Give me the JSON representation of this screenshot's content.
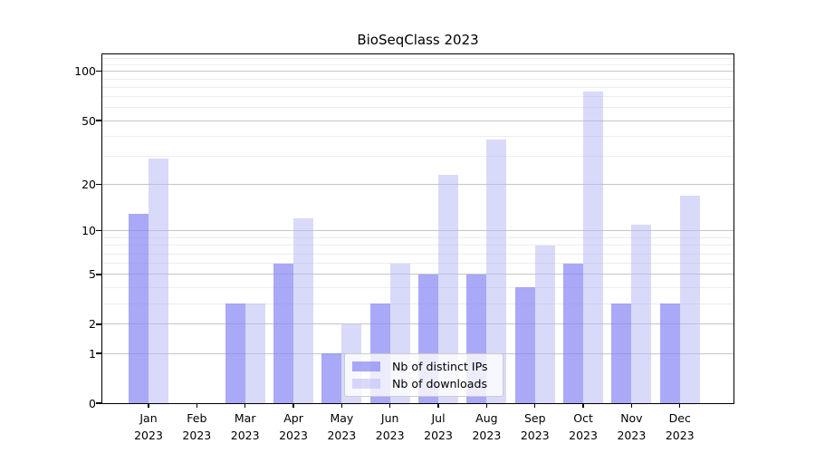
{
  "chart_data": {
    "type": "bar",
    "title": "BioSeqClass 2023",
    "categories": [
      "Jan",
      "Feb",
      "Mar",
      "Apr",
      "May",
      "Jun",
      "Jul",
      "Aug",
      "Sep",
      "Oct",
      "Nov",
      "Dec"
    ],
    "category_year": "2023",
    "series": [
      {
        "name": "Nb of distinct IPs",
        "values": [
          13,
          0,
          3,
          6,
          1,
          3,
          5,
          5,
          4,
          6,
          3,
          3
        ],
        "color": "rgba(136,136,244,0.72)"
      },
      {
        "name": "Nb of downloads",
        "values": [
          29,
          0,
          3,
          12,
          2,
          6,
          23,
          38,
          8,
          75,
          11,
          17
        ],
        "color": "rgba(179,179,245,0.5)"
      }
    ],
    "y_axis": {
      "scale": "log1p",
      "major_ticks": [
        0,
        1,
        2,
        5,
        10,
        20,
        50,
        100
      ],
      "minor_gridlines": [
        3,
        4,
        6,
        7,
        8,
        9,
        30,
        40,
        60,
        70,
        80,
        90,
        110,
        120
      ],
      "max": 127
    },
    "x_axis": {
      "tick_count": 12
    },
    "grid": {
      "enabled": true,
      "major_color": "#c6c6c6",
      "minor_color": "#ececec"
    },
    "legend": {
      "position": "lower center",
      "entries": [
        "Nb of distinct IPs",
        "Nb of downloads"
      ]
    },
    "colors": {
      "ips_bar_solid": "#a9a9f7",
      "downloads_bar_solid": "#d9d9fb",
      "axis": "#000000",
      "background": "#ffffff"
    }
  }
}
